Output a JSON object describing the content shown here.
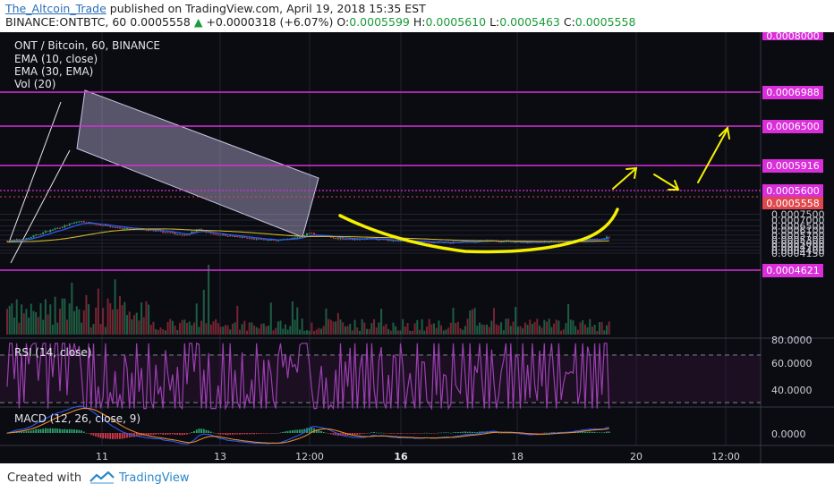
{
  "header": {
    "author": "The_Altcoin_Trade",
    "published": "published on TradingView.com, April 19, 2018 15:35 EST",
    "symbol": "BINANCE:ONTBTC, 60",
    "last": "0.0005558",
    "change": "+0.0000318 (+6.07%)",
    "o_label": "O:",
    "o": "0.0005599",
    "h_label": "H:",
    "h": "0.0005610",
    "l_label": "L:",
    "l": "0.0005463",
    "c_label": "C:",
    "c": "0.0005558"
  },
  "legend": {
    "title": "ONT / Bitcoin, 60, BINANCE",
    "ema10": "EMA (10, close)",
    "ema30": "EMA (30, EMA)",
    "vol": "Vol (20)",
    "rsi": "RSI (14, close)",
    "macd": "MACD (12, 26, close, 9)"
  },
  "footer": {
    "created": "Created with",
    "brand": "TradingView"
  },
  "colors": {
    "background": "#0b0b12",
    "grid": "#232330",
    "up": "#2fa36b",
    "down": "#d13a4a",
    "level": "#d92ed9",
    "ema_fast": "#2d5bf0",
    "ema_slow": "#c9b82c",
    "annotation": "#f4f000",
    "channel": "#b6b0d6",
    "rsi": "#9b3fb0",
    "price_tag": "#e0474c"
  },
  "chart_data": {
    "type": "candlestick",
    "price_axis_ticks": [
      "0.0007500",
      "0.0007000",
      "0.0006500",
      "0.0006100",
      "0.0005700",
      "0.0005300",
      "0.0005000",
      "0.0004700",
      "0.0004400",
      "0.0004150"
    ],
    "time_axis_ticks": [
      "11",
      "13",
      "12:00",
      "16",
      "18",
      "20",
      "12:00"
    ],
    "horizontal_levels": [
      "0.0006988",
      "0.0006500",
      "0.0005916",
      "0.0005600",
      "0.0004621"
    ],
    "top_tag": "0.0008000",
    "current_price_tag": "0.0005558",
    "rsi": {
      "ticks": [
        "80.0000",
        "60.0000",
        "40.0000"
      ]
    },
    "macd": {
      "ticks": [
        "0.0000"
      ]
    },
    "trend": [
      [
        0,
        0.00052
      ],
      [
        8,
        0.00054
      ],
      [
        16,
        0.0006
      ],
      [
        24,
        0.00065
      ],
      [
        30,
        0.00069
      ],
      [
        36,
        0.00067
      ],
      [
        44,
        0.00064
      ],
      [
        52,
        0.00062
      ],
      [
        60,
        0.00061
      ],
      [
        68,
        0.00059
      ],
      [
        74,
        0.00057
      ],
      [
        80,
        0.00062
      ],
      [
        86,
        0.00058
      ],
      [
        92,
        0.000565
      ],
      [
        98,
        0.00055
      ],
      [
        104,
        0.000535
      ],
      [
        110,
        0.000525
      ],
      [
        116,
        0.00053
      ],
      [
        122,
        0.000555
      ],
      [
        126,
        0.00059
      ],
      [
        130,
        0.00057
      ],
      [
        136,
        0.000545
      ],
      [
        144,
        0.000535
      ],
      [
        152,
        0.00054
      ],
      [
        160,
        0.000525
      ],
      [
        168,
        0.000515
      ],
      [
        176,
        0.00051
      ],
      [
        184,
        0.000505
      ],
      [
        192,
        0.000515
      ],
      [
        200,
        0.00052
      ],
      [
        208,
        0.00052
      ],
      [
        216,
        0.00051
      ],
      [
        224,
        0.000515
      ],
      [
        232,
        0.000515
      ],
      [
        240,
        0.00053
      ],
      [
        246,
        0.000535
      ],
      [
        252,
        0.000556
      ]
    ]
  }
}
